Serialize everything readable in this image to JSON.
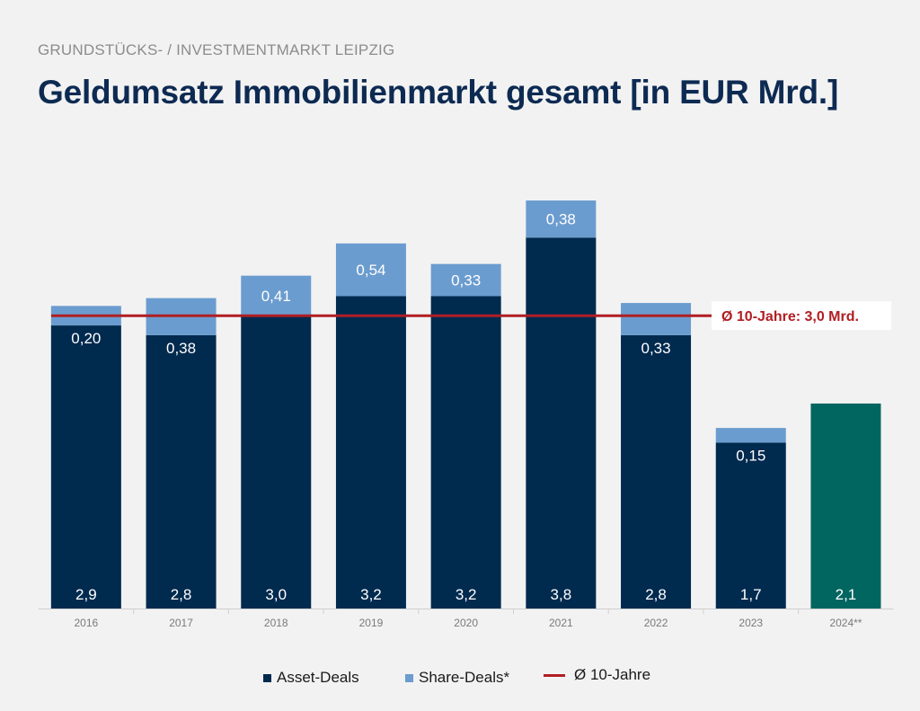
{
  "header": {
    "subtitle": "GRUNDSTÜCKS- / INVESTMENTMARKT LEIPZIG",
    "title": "Geldumsatz Immobilienmarkt gesamt [in EUR Mrd.]"
  },
  "chart_data": {
    "type": "bar",
    "stacked": true,
    "categories": [
      "2016",
      "2017",
      "2018",
      "2019",
      "2020",
      "2021",
      "2022",
      "2023",
      "2024**"
    ],
    "series": [
      {
        "name": "Asset-Deals",
        "color": "#012a4f",
        "values": [
          2.9,
          2.8,
          3.0,
          3.2,
          3.2,
          3.8,
          2.8,
          1.7,
          2.1
        ],
        "labels": [
          "2,9",
          "2,8",
          "3,0",
          "3,2",
          "3,2",
          "3,8",
          "2,8",
          "1,7",
          "2,1"
        ],
        "highlight": {
          "category": "2024**",
          "color": "#016560"
        }
      },
      {
        "name": "Share-Deals*",
        "color": "#6b9ccf",
        "values": [
          0.2,
          0.38,
          0.41,
          0.54,
          0.33,
          0.38,
          0.33,
          0.15,
          null
        ],
        "labels": [
          "0,20",
          "0,38",
          "0,41",
          "0,54",
          "0,33",
          "0,38",
          "0,33",
          "0,15",
          ""
        ]
      }
    ],
    "average": {
      "name": "Ø 10-Jahre",
      "value": 3.0,
      "label": "Ø 10-Jahre: 3,0 Mrd.",
      "color": "#b01e23"
    },
    "ylim": [
      0,
      4.3
    ],
    "grid": false,
    "legend_position": "bottom"
  }
}
